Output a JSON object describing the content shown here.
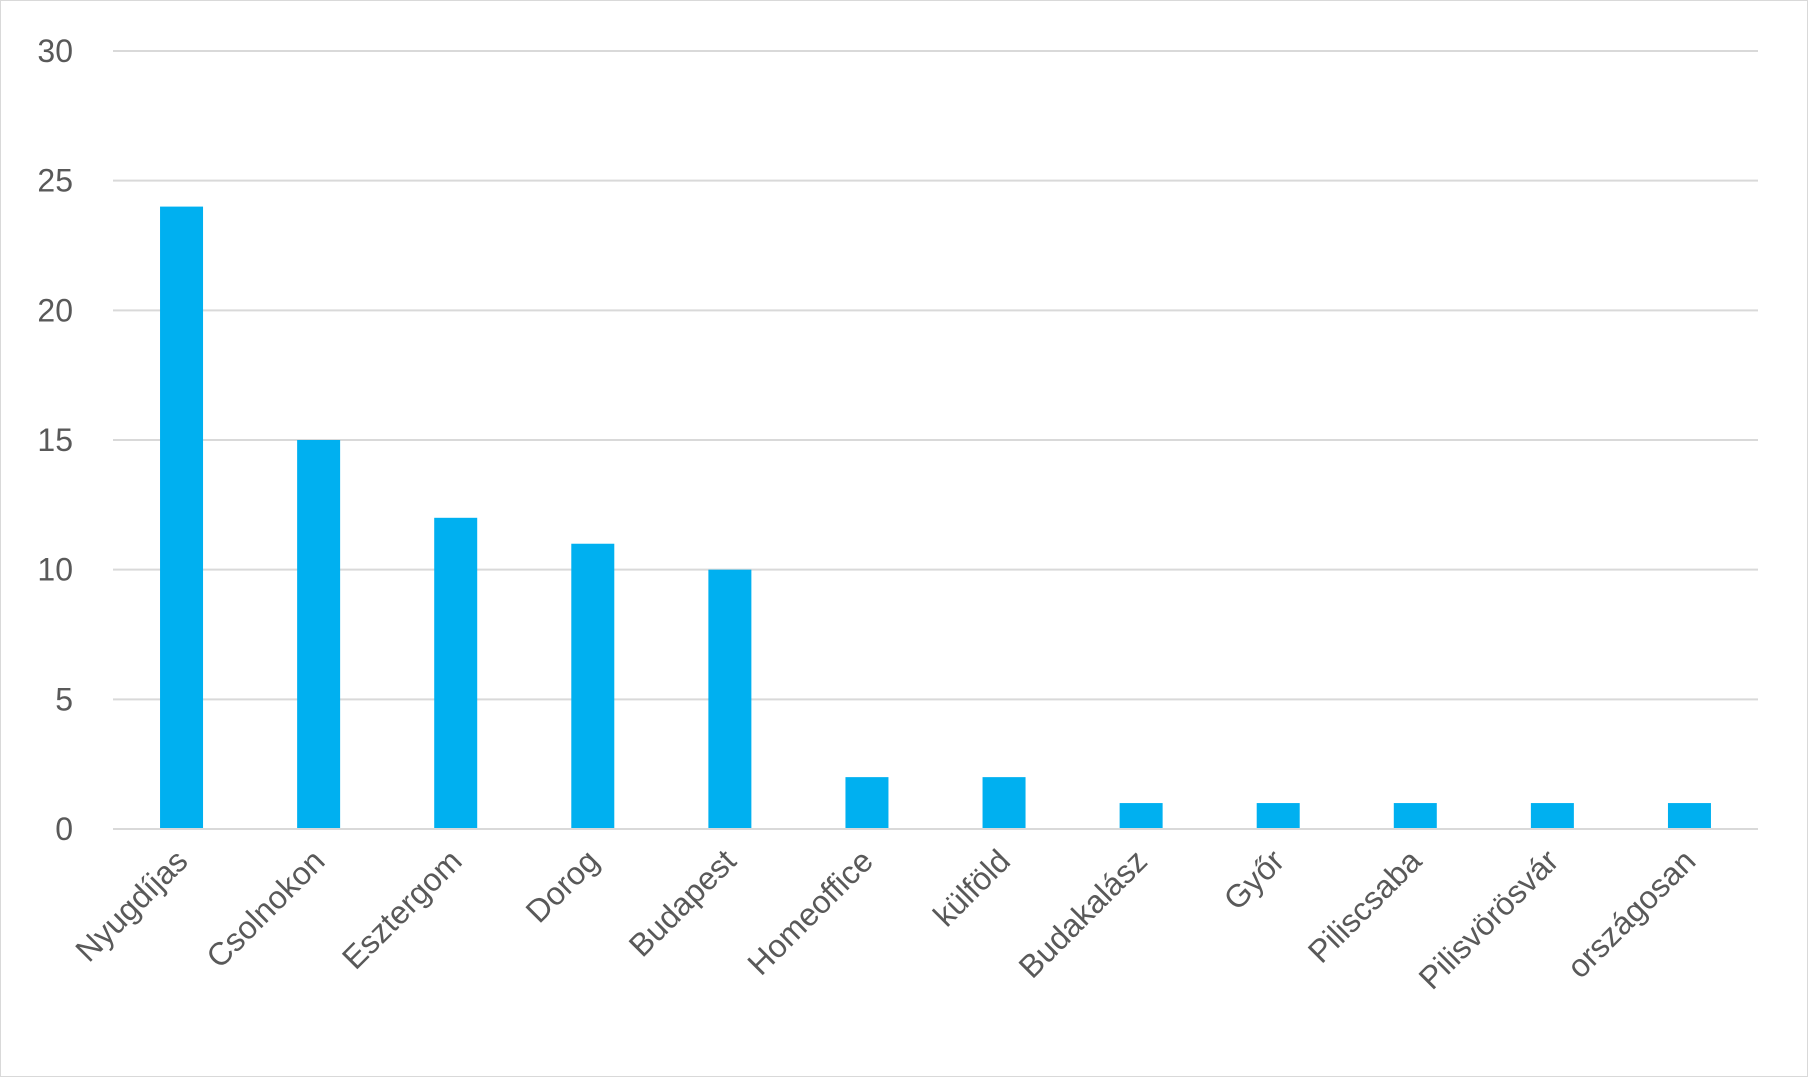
{
  "chart_data": {
    "type": "bar",
    "title": "",
    "xlabel": "",
    "ylabel": "",
    "categories": [
      "Nyugdíjas",
      "Csolnokon",
      "Esztergom",
      "Dorog",
      "Budapest",
      "Homeoffice",
      "külföld",
      "Budakalász",
      "Győr",
      "Piliscsaba",
      "Pilisvörösvár",
      "országosan"
    ],
    "values": [
      24,
      15,
      12,
      11,
      10,
      2,
      2,
      1,
      1,
      1,
      1,
      1
    ],
    "ylim": [
      0,
      30
    ],
    "yticks": [
      0,
      5,
      10,
      15,
      20,
      25,
      30
    ],
    "grid": true,
    "legend": "none",
    "colors": {
      "bar": "#00b0f0",
      "grid": "#d9d9d9",
      "text": "#595959",
      "border": "#d9d9d9"
    }
  }
}
